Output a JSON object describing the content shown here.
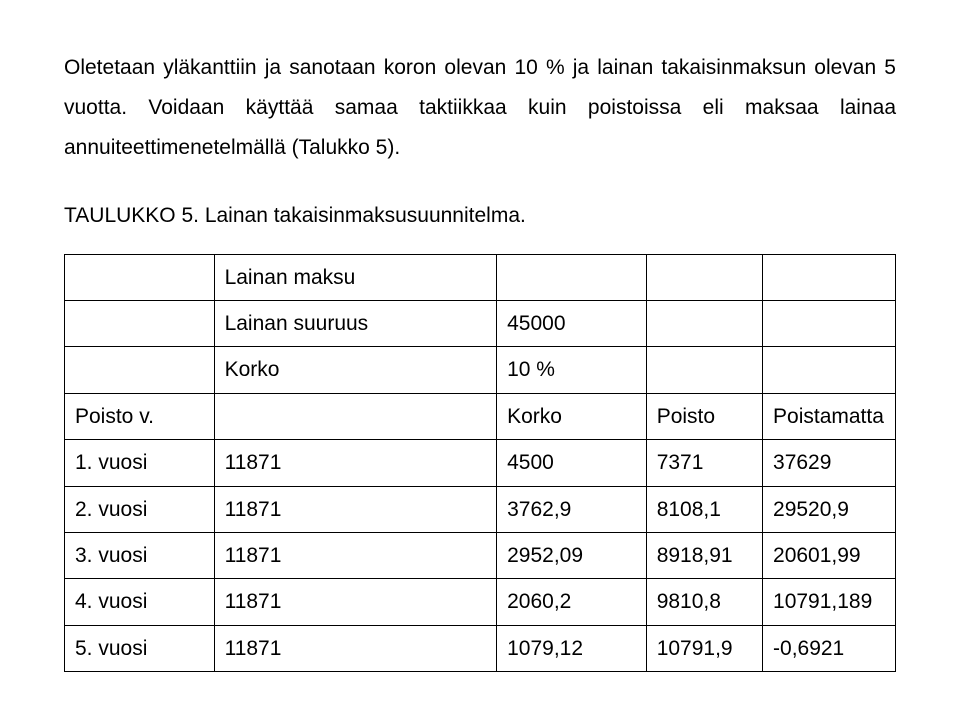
{
  "paragraph1": "Oletetaan yläkanttiin ja sanotaan koron olevan 10 % ja lainan takaisinmaksun olevan 5 vuotta. Voidaan käyttää samaa taktiikkaa kuin poistoissa eli maksaa lainaa annuiteettimenetelmällä (Talukko 5).",
  "heading": "TAULUKKO 5. Lainan takaisinmaksusuunnitelma.",
  "table": {
    "rows": [
      [
        "",
        "Lainan maksu",
        "",
        "",
        ""
      ],
      [
        "",
        "Lainan suuruus",
        "45000",
        "",
        ""
      ],
      [
        "",
        "Korko",
        "10 %",
        "",
        ""
      ],
      [
        "Poisto v.",
        "",
        "Korko",
        "Poisto",
        "Poistamatta"
      ],
      [
        "1. vuosi",
        "11871",
        "4500",
        "7371",
        "37629"
      ],
      [
        "2. vuosi",
        "11871",
        "3762,9",
        "8108,1",
        "29520,9"
      ],
      [
        "3. vuosi",
        "11871",
        "2952,09",
        "8918,91",
        "20601,99"
      ],
      [
        "4. vuosi",
        "11871",
        "2060,2",
        "9810,8",
        "10791,189"
      ],
      [
        "5. vuosi",
        "11871",
        "1079,12",
        "10791,9",
        "-0,6921"
      ]
    ]
  }
}
